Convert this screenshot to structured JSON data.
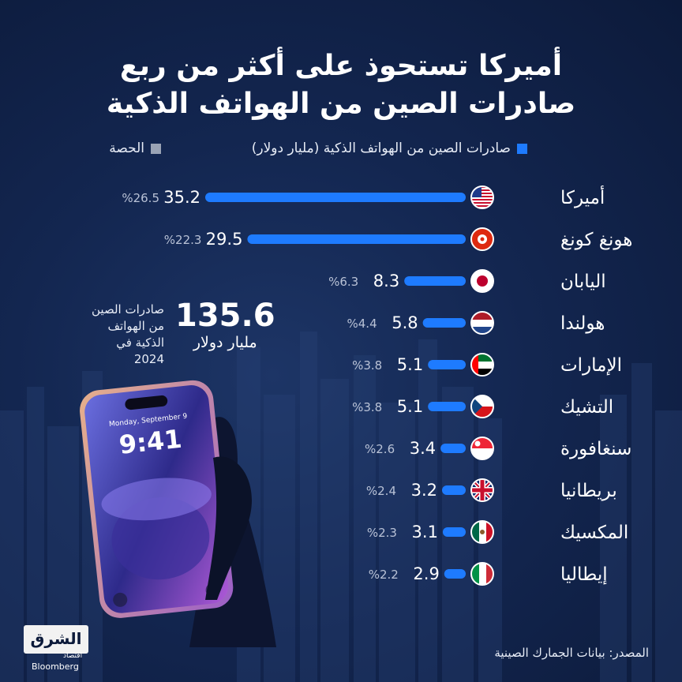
{
  "title_line1": "أميركا تستحوذ على أكثر من ربع",
  "title_line2": "صادرات الصين من الهواتف الذكية",
  "legend": {
    "exports_label": "صادرات الصين من الهواتف الذكية (مليار دولار)",
    "share_label": "الحصة",
    "exports_color": "#1e7bff",
    "share_color": "#9aa3b5"
  },
  "total": {
    "value": "135.6",
    "unit": "مليار دولار",
    "description": "صادرات الصين من الهواتف الذكية في 2024"
  },
  "phone": {
    "date": "Monday, September 9",
    "time": "9:41"
  },
  "logo": {
    "name": "الشرق",
    "sub": "اقتصاد",
    "partner": "Bloomberg"
  },
  "source": "المصدر: بيانات الجمارك الصينية",
  "chart_data": {
    "type": "bar",
    "orientation": "horizontal",
    "categories": [
      "أميركا",
      "هونغ كونغ",
      "اليابان",
      "هولندا",
      "الإمارات",
      "التشيك",
      "سنغافورة",
      "بريطانيا",
      "المكسيك",
      "إيطاليا"
    ],
    "series": [
      {
        "name": "صادرات الصين من الهواتف الذكية (مليار دولار)",
        "values": [
          35.2,
          29.5,
          8.3,
          5.8,
          5.1,
          5.1,
          3.4,
          3.2,
          3.1,
          2.9
        ]
      },
      {
        "name": "الحصة",
        "values": [
          "%26.5",
          "%22.3",
          "%6.3",
          "%4.4",
          "%3.8",
          "%3.8",
          "%2.6",
          "%2.4",
          "%2.3",
          "%2.2"
        ]
      }
    ],
    "flags": [
      "flag-usa-icon",
      "flag-hong-kong-icon",
      "flag-japan-icon",
      "flag-netherlands-icon",
      "flag-uae-icon",
      "flag-czechia-icon",
      "flag-singapore-icon",
      "flag-uk-icon",
      "flag-mexico-icon",
      "flag-italy-icon"
    ],
    "bar_color": "#1e7bff",
    "grid": false
  }
}
